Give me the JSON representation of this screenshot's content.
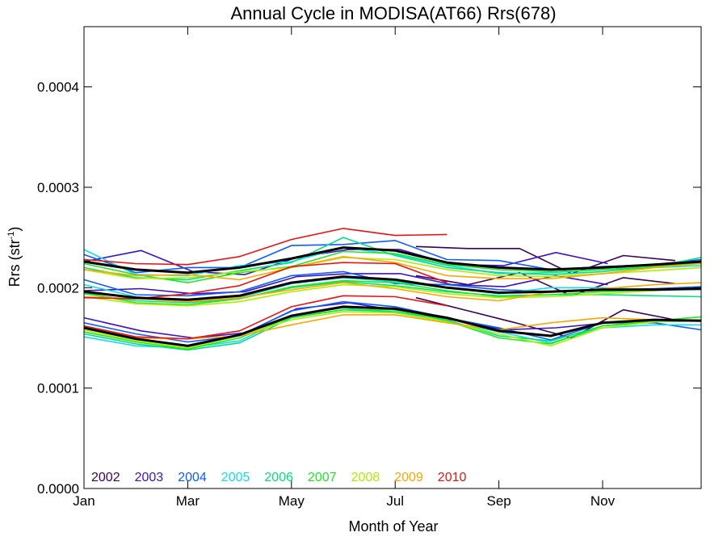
{
  "chart_data": {
    "type": "line",
    "title": "Annual Cycle in MODISA(AT66) Rrs(678)",
    "xlabel": "Month of Year",
    "ylabel_main": "Rrs (str",
    "ylabel_sup": "-1",
    "ylabel_close": ")",
    "xlim": [
      1,
      12.9
    ],
    "ylim": [
      0,
      0.00046
    ],
    "x_ticks": [
      {
        "value": 1,
        "label": "Jan"
      },
      {
        "value": 3,
        "label": "Mar"
      },
      {
        "value": 5,
        "label": "May"
      },
      {
        "value": 7,
        "label": "Jul"
      },
      {
        "value": 9,
        "label": "Sep"
      },
      {
        "value": 11,
        "label": "Nov"
      }
    ],
    "y_ticks": [
      {
        "value": 0,
        "label": "0.0000"
      },
      {
        "value": 0.0001,
        "label": "0.0001"
      },
      {
        "value": 0.0002,
        "label": "0.0002"
      },
      {
        "value": 0.0003,
        "label": "0.0003"
      },
      {
        "value": 0.0004,
        "label": "0.0004"
      }
    ],
    "legend_placement": "bottom-left",
    "series": [
      {
        "name": "2002",
        "color": "#3a005a",
        "groups": [
          {
            "x": [
              7.4,
              8.4,
              9.4,
              10.4,
              11.4,
              12.4
            ],
            "y": [
              0.000241,
              0.000239,
              0.000239,
              0.000214,
              0.000232,
              0.000227
            ]
          },
          {
            "x": [
              7.4,
              8.4,
              9.4,
              10.4,
              11.4,
              12.4
            ],
            "y": [
              0.000212,
              0.000203,
              0.000215,
              0.000192,
              0.00021,
              0.000204
            ]
          },
          {
            "x": [
              7.4,
              8.4,
              9.4,
              10.4,
              11.4,
              12.4
            ],
            "y": [
              0.00019,
              0.000177,
              0.000164,
              0.00015,
              0.000178,
              0.000168
            ]
          }
        ]
      },
      {
        "name": "2003",
        "color": "#3c12c8",
        "groups": [
          {
            "x": [
              1.0,
              2.1,
              3.1,
              4.1,
              5.1,
              6.1,
              7.1,
              8.1,
              9.1,
              10.1,
              11.1
            ],
            "y": [
              0.000226,
              0.000237,
              0.000216,
              0.000213,
              0.00023,
              0.000238,
              0.000238,
              0.000223,
              0.000222,
              0.000235,
              0.000224
            ]
          },
          {
            "x": [
              1.0,
              2.1,
              3.1,
              4.1,
              5.1,
              6.1,
              7.1,
              8.1,
              9.1,
              10.1,
              11.1
            ],
            "y": [
              0.000197,
              0.000199,
              0.000194,
              0.000196,
              0.000211,
              0.000214,
              0.000214,
              0.000203,
              0.000201,
              0.000212,
              0.000203
            ]
          },
          {
            "x": [
              1.0,
              2.1,
              3.1,
              4.1,
              5.1,
              6.1,
              7.1,
              8.1,
              9.1,
              10.1,
              11.1
            ],
            "y": [
              0.00017,
              0.000157,
              0.00015,
              0.000155,
              0.000179,
              0.000185,
              0.000177,
              0.000168,
              0.000158,
              0.00016,
              0.000165
            ]
          }
        ]
      },
      {
        "name": "2004",
        "color": "#0a5cff",
        "groups": [
          {
            "x": [
              1.0,
              2.0,
              3.0,
              4.0,
              5.0,
              6.0,
              7.0,
              8.0,
              9.0,
              10.0,
              11.0,
              12.0,
              12.9
            ],
            "y": [
              0.000233,
              0.000215,
              0.00022,
              0.00022,
              0.000242,
              0.000243,
              0.000247,
              0.000228,
              0.000227,
              0.000218,
              0.000221,
              0.000223,
              0.000228
            ]
          },
          {
            "x": [
              1.0,
              2.0,
              3.0,
              4.0,
              5.0,
              6.0,
              7.0,
              8.0,
              9.0,
              10.0,
              11.0,
              12.0,
              12.9
            ],
            "y": [
              0.000208,
              0.000193,
              0.000192,
              0.000196,
              0.000212,
              0.000216,
              0.000204,
              0.000203,
              0.000198,
              0.000196,
              0.000198,
              0.000199,
              0.000201
            ]
          },
          {
            "x": [
              1.0,
              2.0,
              3.0,
              4.0,
              5.0,
              6.0,
              7.0,
              8.0,
              9.0,
              10.0,
              11.0,
              12.0,
              12.9
            ],
            "y": [
              0.000165,
              0.000154,
              0.000146,
              0.000152,
              0.000177,
              0.000186,
              0.000181,
              0.00017,
              0.00016,
              0.000148,
              0.000165,
              0.000165,
              0.000158
            ]
          }
        ]
      },
      {
        "name": "2005",
        "color": "#10e0e8",
        "groups": [
          {
            "x": [
              1.0,
              2.0,
              3.0,
              4.0,
              5.0,
              6.0,
              7.0,
              8.0,
              9.0,
              10.0,
              11.0,
              12.0,
              12.9
            ],
            "y": [
              0.000238,
              0.000213,
              0.000212,
              0.000222,
              0.000226,
              0.00024,
              0.000233,
              0.000222,
              0.000214,
              0.000215,
              0.000218,
              0.00022,
              0.000222
            ]
          },
          {
            "x": [
              1.0,
              2.0,
              3.0,
              4.0,
              5.0,
              6.0,
              7.0,
              8.0,
              9.0,
              10.0,
              11.0,
              12.0,
              12.9
            ],
            "y": [
              0.000203,
              0.000191,
              0.000186,
              0.00019,
              0.000204,
              0.00021,
              0.000206,
              0.0002,
              0.000194,
              0.0002,
              0.0002,
              0.000198,
              0.000198
            ]
          },
          {
            "x": [
              1.0,
              2.0,
              3.0,
              4.0,
              5.0,
              6.0,
              7.0,
              8.0,
              9.0,
              10.0,
              11.0,
              12.0,
              12.9
            ],
            "y": [
              0.000151,
              0.000142,
              0.00014,
              0.000147,
              0.000172,
              0.00018,
              0.000175,
              0.000166,
              0.000156,
              0.000145,
              0.00016,
              0.000163,
              0.000163
            ]
          }
        ]
      },
      {
        "name": "2006",
        "color": "#00e080",
        "groups": [
          {
            "x": [
              1.0,
              2.0,
              3.0,
              4.0,
              5.0,
              6.0,
              7.0,
              8.0,
              9.0,
              10.0,
              11.0,
              12.0,
              12.9
            ],
            "y": [
              0.00022,
              0.00021,
              0.000208,
              0.000217,
              0.000225,
              0.00025,
              0.000232,
              0.00022,
              0.000215,
              0.000213,
              0.000216,
              0.000221,
              0.00023
            ]
          },
          {
            "x": [
              1.0,
              2.0,
              3.0,
              4.0,
              5.0,
              6.0,
              7.0,
              8.0,
              9.0,
              10.0,
              11.0,
              12.0,
              12.9
            ],
            "y": [
              0.000194,
              0.000187,
              0.000185,
              0.000189,
              0.0002,
              0.000206,
              0.000202,
              0.000196,
              0.000192,
              0.000193,
              0.000193,
              0.000192,
              0.000191
            ]
          },
          {
            "x": [
              1.0,
              2.0,
              3.0,
              4.0,
              5.0,
              6.0,
              7.0,
              8.0,
              9.0,
              10.0,
              11.0,
              12.0,
              12.9
            ],
            "y": [
              0.000154,
              0.000144,
              0.000138,
              0.000145,
              0.00017,
              0.000178,
              0.000176,
              0.000168,
              0.000152,
              0.000147,
              0.000162,
              0.000166,
              0.000167
            ]
          }
        ]
      },
      {
        "name": "2007",
        "color": "#22e622",
        "groups": [
          {
            "x": [
              1.0,
              2.0,
              3.0,
              4.0,
              5.0,
              6.0,
              7.0,
              8.0,
              9.0,
              10.0,
              11.0,
              12.0,
              12.9
            ],
            "y": [
              0.000224,
              0.000213,
              0.000205,
              0.000215,
              0.000221,
              0.000236,
              0.000234,
              0.000223,
              0.000218,
              0.000216,
              0.000218,
              0.000221,
              0.000225
            ]
          },
          {
            "x": [
              1.0,
              2.0,
              3.0,
              4.0,
              5.0,
              6.0,
              7.0,
              8.0,
              9.0,
              10.0,
              11.0,
              12.0,
              12.9
            ],
            "y": [
              0.000195,
              0.000185,
              0.000183,
              0.000189,
              0.000201,
              0.000207,
              0.000205,
              0.000197,
              0.000191,
              0.000193,
              0.000196,
              0.000198,
              0.000199
            ]
          },
          {
            "x": [
              1.0,
              2.0,
              3.0,
              4.0,
              5.0,
              6.0,
              7.0,
              8.0,
              9.0,
              10.0,
              11.0,
              12.0,
              12.9
            ],
            "y": [
              0.000156,
              0.000146,
              0.000139,
              0.00015,
              0.000171,
              0.000178,
              0.000178,
              0.000167,
              0.00015,
              0.000144,
              0.000162,
              0.000167,
              0.000171
            ]
          }
        ]
      },
      {
        "name": "2008",
        "color": "#aaf000",
        "groups": [
          {
            "x": [
              1.0,
              2.0,
              3.0,
              4.0,
              5.0,
              6.0,
              7.0,
              8.0,
              9.0,
              10.0,
              11.0,
              12.0,
              12.9
            ],
            "y": [
              0.000218,
              0.000209,
              0.00021,
              0.000216,
              0.00022,
              0.00023,
              0.000228,
              0.000218,
              0.000212,
              0.000211,
              0.000214,
              0.000217,
              0.00022
            ]
          },
          {
            "x": [
              1.0,
              2.0,
              3.0,
              4.0,
              5.0,
              6.0,
              7.0,
              8.0,
              9.0,
              10.0,
              11.0,
              12.0,
              12.9
            ],
            "y": [
              0.000191,
              0.000184,
              0.000182,
              0.000186,
              0.000196,
              0.000203,
              0.000201,
              0.000194,
              0.00019,
              0.000191,
              0.000194,
              0.000197,
              0.000199
            ]
          },
          {
            "x": [
              1.0,
              2.0,
              3.0,
              4.0,
              5.0,
              6.0,
              7.0,
              8.0,
              9.0,
              10.0,
              11.0,
              12.0,
              12.9
            ],
            "y": [
              0.000158,
              0.000147,
              0.00014,
              0.000152,
              0.000168,
              0.000176,
              0.000175,
              0.000166,
              0.000154,
              0.000142,
              0.00016,
              0.000166,
              0.000168
            ]
          }
        ]
      },
      {
        "name": "2009",
        "color": "#ffa500",
        "groups": [
          {
            "x": [
              1.0,
              2.0,
              3.0,
              4.0,
              5.0,
              6.0,
              7.0,
              8.0,
              9.0,
              10.0,
              11.0,
              12.0,
              12.9
            ],
            "y": [
              0.000218,
              0.000212,
              0.000213,
              0.000208,
              0.00022,
              0.000231,
              0.000225,
              0.000212,
              0.000209,
              0.000209,
              0.000214,
              0.00022,
              0.000224
            ]
          },
          {
            "x": [
              1.0,
              2.0,
              3.0,
              4.0,
              5.0,
              6.0,
              7.0,
              8.0,
              9.0,
              10.0,
              11.0,
              12.0,
              12.9
            ],
            "y": [
              0.000191,
              0.000189,
              0.000186,
              0.00019,
              0.000198,
              0.000205,
              0.000199,
              0.000191,
              0.000187,
              0.000196,
              0.000199,
              0.000203,
              0.000205
            ]
          },
          {
            "x": [
              1.0,
              2.0,
              3.0,
              4.0,
              5.0,
              6.0,
              7.0,
              8.0,
              9.0,
              10.0,
              11.0,
              12.0,
              12.9
            ],
            "y": [
              0.00016,
              0.00015,
              0.000149,
              0.000152,
              0.000163,
              0.000173,
              0.000173,
              0.000165,
              0.000158,
              0.000165,
              0.00017,
              0.000168,
              0.000167
            ]
          }
        ]
      },
      {
        "name": "2010",
        "color": "#ee1111",
        "groups": [
          {
            "x": [
              1.0,
              2.0,
              3.0,
              4.0,
              5.0,
              6.0,
              7.0,
              8.0
            ],
            "y": [
              0.000228,
              0.000224,
              0.000223,
              0.000231,
              0.000248,
              0.000259,
              0.000252,
              0.000253
            ]
          },
          {
            "x": [
              1.0,
              2.0,
              3.0,
              4.0,
              5.0,
              6.0,
              7.0,
              8.0
            ],
            "y": [
              0.00019,
              0.000189,
              0.000194,
              0.000202,
              0.000221,
              0.000225,
              0.000224,
              0.000205
            ]
          },
          {
            "x": [
              1.0,
              2.0,
              3.0,
              4.0,
              5.0,
              6.0,
              7.0,
              8.0
            ],
            "y": [
              0.000162,
              0.000151,
              0.000149,
              0.000157,
              0.000181,
              0.000192,
              0.000191,
              0.000182
            ]
          }
        ]
      },
      {
        "name": "",
        "color": "#000000",
        "bold": true,
        "groups": [
          {
            "x": [
              1.0,
              2.0,
              3.0,
              4.0,
              5.0,
              6.0,
              7.0,
              8.0,
              9.0,
              10.0,
              11.0,
              12.0,
              12.9
            ],
            "y": [
              0.000226,
              0.000218,
              0.000215,
              0.00022,
              0.000229,
              0.00024,
              0.000237,
              0.000225,
              0.00022,
              0.000218,
              0.00022,
              0.000223,
              0.000226
            ]
          },
          {
            "x": [
              1.0,
              2.0,
              3.0,
              4.0,
              5.0,
              6.0,
              7.0,
              8.0,
              9.0,
              10.0,
              11.0,
              12.0,
              12.9
            ],
            "y": [
              0.000196,
              0.00019,
              0.000188,
              0.000192,
              0.000205,
              0.000211,
              0.000208,
              0.0002,
              0.000195,
              0.000196,
              0.000198,
              0.000198,
              0.000199
            ]
          },
          {
            "x": [
              1.0,
              2.0,
              3.0,
              4.0,
              5.0,
              6.0,
              7.0,
              8.0,
              9.0,
              10.0,
              11.0,
              12.0,
              12.9
            ],
            "y": [
              0.00016,
              0.000149,
              0.000142,
              0.000153,
              0.000172,
              0.000181,
              0.000179,
              0.00017,
              0.000157,
              0.000152,
              0.000165,
              0.000168,
              0.000167
            ]
          }
        ]
      }
    ]
  }
}
